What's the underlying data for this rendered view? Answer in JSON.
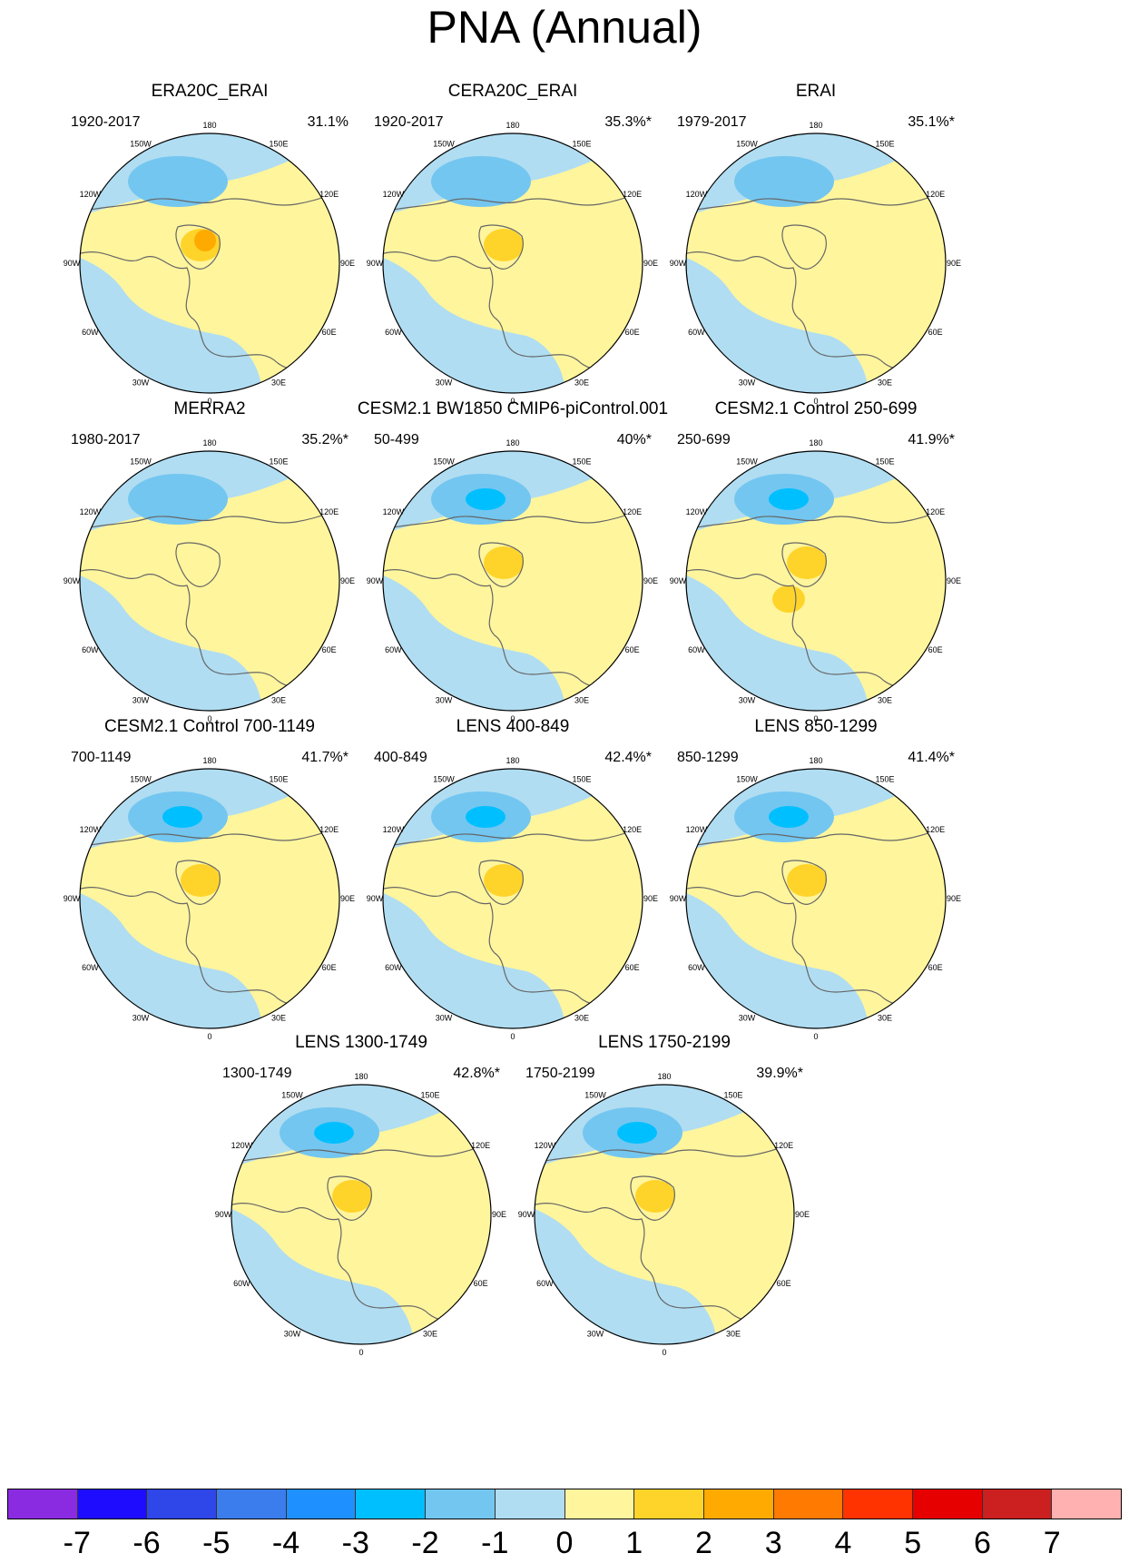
{
  "figure": {
    "title": "PNA (Annual)"
  },
  "lon_labels": [
    "180",
    "150E",
    "120E",
    "90E",
    "60E",
    "30E",
    "0",
    "30W",
    "60W",
    "90W",
    "120W",
    "150W"
  ],
  "panels": [
    {
      "title": "ERA20C_ERAI",
      "years": "1920-2017",
      "variance": "31.1%"
    },
    {
      "title": "CERA20C_ERAI",
      "years": "1920-2017",
      "variance": "35.3%*"
    },
    {
      "title": "ERAI",
      "years": "1979-2017",
      "variance": "35.1%*"
    },
    {
      "title": "MERRA2",
      "years": "1980-2017",
      "variance": "35.2%*"
    },
    {
      "title": "CESM2.1 BW1850 CMIP6-piControl.001",
      "years": "50-499",
      "variance": "40%*"
    },
    {
      "title": "CESM2.1 Control 250-699",
      "years": "250-699",
      "variance": "41.9%*"
    },
    {
      "title": "CESM2.1 Control 700-1149",
      "years": "700-1149",
      "variance": "41.7%*"
    },
    {
      "title": "LENS 400-849",
      "years": "400-849",
      "variance": "42.4%*"
    },
    {
      "title": "LENS 850-1299",
      "years": "850-1299",
      "variance": "41.4%*"
    },
    {
      "title": "LENS 1300-1749",
      "years": "1300-1749",
      "variance": "42.8%*"
    },
    {
      "title": "LENS 1750-2199",
      "years": "1750-2199",
      "variance": "39.9%*"
    }
  ],
  "colorbar": {
    "labels": [
      "-7",
      "-6",
      "-5",
      "-4",
      "-3",
      "-2",
      "-1",
      "0",
      "1",
      "2",
      "3",
      "4",
      "5",
      "6",
      "7"
    ],
    "colors": [
      "#8a2be2",
      "#1e0cff",
      "#2f46e8",
      "#3c7ded",
      "#1e90ff",
      "#00bfff",
      "#73c6f0",
      "#b0ddf2",
      "#fff59d",
      "#ffd42a",
      "#ffaa00",
      "#ff7a00",
      "#ff3300",
      "#e60000",
      "#cc1f1f",
      "#ffb0b0"
    ]
  }
}
